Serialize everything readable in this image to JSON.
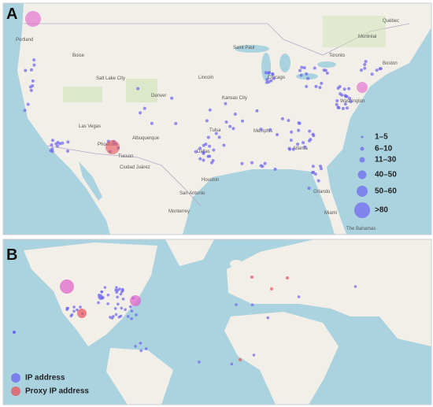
{
  "panels": {
    "a": {
      "label": "A",
      "legend": [
        "1–5",
        "6–10",
        "11–30",
        "40–50",
        "50–60",
        ">80"
      ],
      "places": [
        "Portland",
        "Boise",
        "Salt Lake City",
        "Denver",
        "Las Vegas",
        "Albuquerque",
        "Phoenix",
        "Tucson",
        "Lincoln",
        "Kansas City",
        "Tulsa",
        "Dallas",
        "Memphis",
        "Chicago",
        "Toronto",
        "Montréal",
        "Québec",
        "Boston",
        "Washington",
        "Atlanta",
        "Houston",
        "San Antonio",
        "Monterrey",
        "Orlando",
        "Miami",
        "The Bahamas",
        "Saint Paul",
        "Ciudad Juárez"
      ]
    },
    "b": {
      "label": "B",
      "legend": [
        "IP address",
        "Proxy IP address"
      ]
    }
  }
}
